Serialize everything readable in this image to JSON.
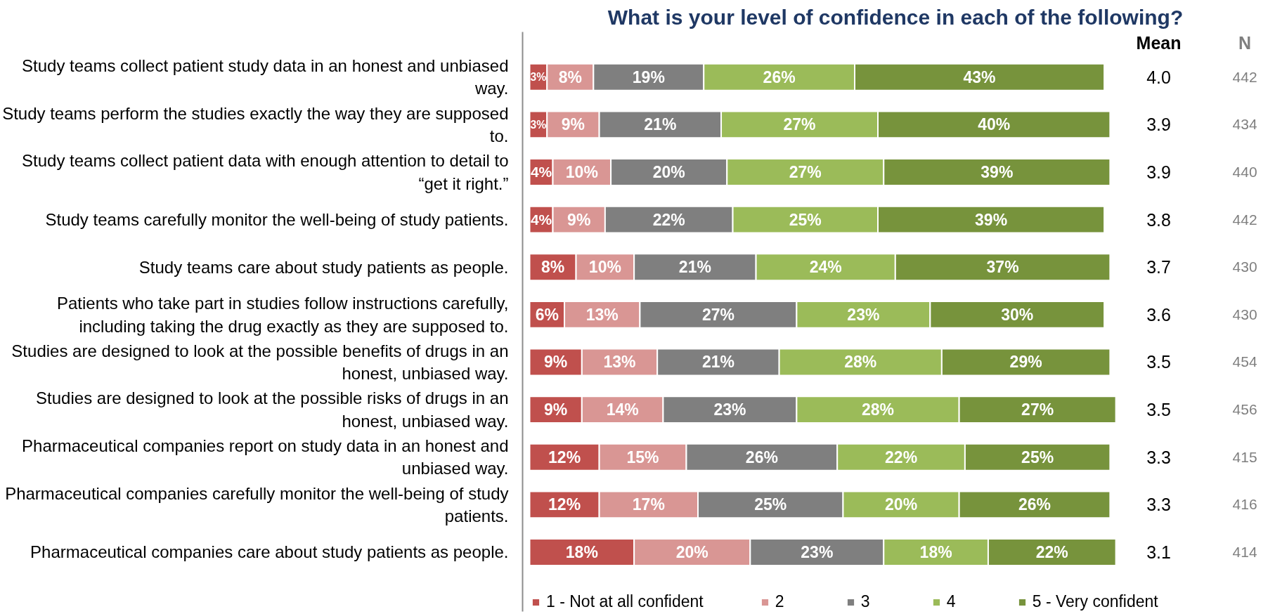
{
  "chart_data": {
    "type": "bar",
    "orientation": "horizontal",
    "stacked": true,
    "title": "What is your level of confidence in each of the following?",
    "categories": [
      "Study teams collect patient study data in an honest and unbiased way.",
      "Study teams perform the studies exactly the way they are supposed to.",
      "Study teams collect patient data with enough attention to detail to “get it right.”",
      "Study teams carefully monitor the well-being of study patients.",
      "Study teams care about study patients as people.",
      "Patients who take part in studies follow instructions carefully, including taking the drug exactly as they are supposed to.",
      "Studies are designed to look at the possible benefits of drugs in an honest, unbiased way.",
      "Studies are designed to look at the possible risks of drugs in an honest, unbiased way.",
      "Pharmaceutical companies report on study data in an honest and unbiased way.",
      "Pharmaceutical companies carefully monitor the well-being of study patients.",
      "Pharmaceutical companies care about study patients as people."
    ],
    "series": [
      {
        "name": "1 - Not at all confident",
        "color": "#c0504d",
        "values": [
          3,
          3,
          4,
          4,
          8,
          6,
          9,
          9,
          12,
          12,
          18
        ],
        "value_labels": [
          "3%",
          "3%",
          "4%",
          "4%",
          "8%",
          "6%",
          "9%",
          "9%",
          "12%",
          "12%",
          "18%"
        ]
      },
      {
        "name": "2",
        "color": "#d99694",
        "values": [
          8,
          9,
          10,
          9,
          10,
          13,
          13,
          14,
          15,
          17,
          20
        ],
        "value_labels": [
          "8%",
          "9%",
          "10%",
          "9%",
          "10%",
          "13%",
          "13%",
          "14%",
          "15%",
          "17%",
          "20%"
        ]
      },
      {
        "name": "3",
        "color": "#7f7f7f",
        "values": [
          19,
          21,
          20,
          22,
          21,
          27,
          21,
          23,
          26,
          25,
          23
        ],
        "value_labels": [
          "19%",
          "21%",
          "20%",
          "22%",
          "21%",
          "27%",
          "21%",
          "23%",
          "26%",
          "25%",
          "23%"
        ]
      },
      {
        "name": "4",
        "color": "#9bbb59",
        "values": [
          26,
          27,
          27,
          25,
          24,
          23,
          28,
          28,
          22,
          20,
          18
        ],
        "value_labels": [
          "26%",
          "27%",
          "27%",
          "25%",
          "24%",
          "23%",
          "28%",
          "28%",
          "22%",
          "20%",
          "18%"
        ]
      },
      {
        "name": "5 - Very confident",
        "color": "#77933c",
        "values": [
          43,
          40,
          39,
          39,
          37,
          30,
          29,
          27,
          25,
          26,
          22
        ],
        "value_labels": [
          "43%",
          "40%",
          "39%",
          "39%",
          "37%",
          "30%",
          "29%",
          "27%",
          "25%",
          "26%",
          "22%"
        ]
      }
    ],
    "annotations": [
      "Mean",
      "N",
      "4.0",
      "442",
      "3.9",
      "434",
      "3.9",
      "440",
      "3.8",
      "442",
      "3.7",
      "430",
      "3.6",
      "430",
      "3.5",
      "454",
      "3.5",
      "456",
      "3.3",
      "415",
      "3.3",
      "416",
      "3.1",
      "414"
    ],
    "legend": "bottom",
    "grid": false,
    "tick_labels": "y"
  }
}
